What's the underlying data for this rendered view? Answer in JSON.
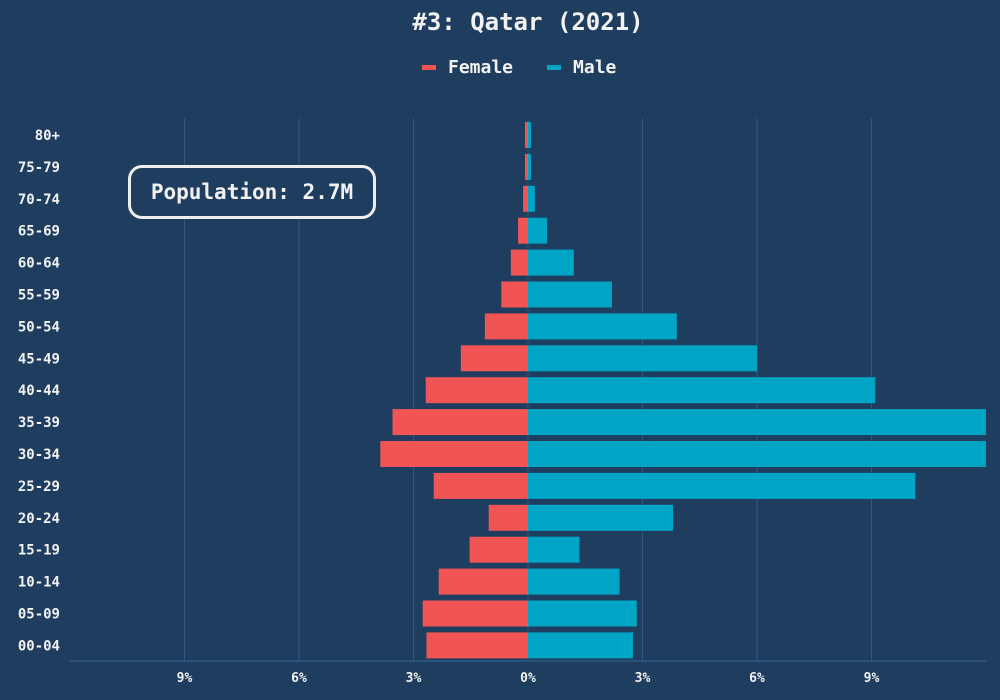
{
  "chart_data": {
    "type": "bar",
    "title": "#3: Qatar (2021)",
    "annotation": "Population: 2.7M",
    "categories": [
      "80+",
      "75-79",
      "70-74",
      "65-69",
      "60-64",
      "55-59",
      "50-54",
      "45-49",
      "40-44",
      "35-39",
      "30-34",
      "25-29",
      "20-24",
      "15-19",
      "10-14",
      "05-09",
      "00-04"
    ],
    "series": [
      {
        "name": "Female",
        "color": "#f05454",
        "values": [
          0.08,
          0.08,
          0.13,
          0.26,
          0.45,
          0.7,
          1.13,
          1.76,
          2.68,
          3.55,
          3.87,
          2.47,
          1.03,
          1.53,
          2.34,
          2.76,
          2.66
        ]
      },
      {
        "name": "Male",
        "color": "#00a5c6",
        "values": [
          0.08,
          0.08,
          0.18,
          0.5,
          1.2,
          2.2,
          3.9,
          6.0,
          9.1,
          13.0,
          13.5,
          10.15,
          3.8,
          1.35,
          2.4,
          2.85,
          2.75
        ]
      }
    ],
    "xlim": [
      -12,
      12
    ],
    "xticks": [
      -9,
      -6,
      -3,
      0,
      3,
      6,
      9
    ],
    "xtick_labels": [
      "9%",
      "6%",
      "3%",
      "0%",
      "3%",
      "6%",
      "9%"
    ],
    "xlabel": "",
    "ylabel": "",
    "grid": true,
    "legend": "top-center"
  }
}
